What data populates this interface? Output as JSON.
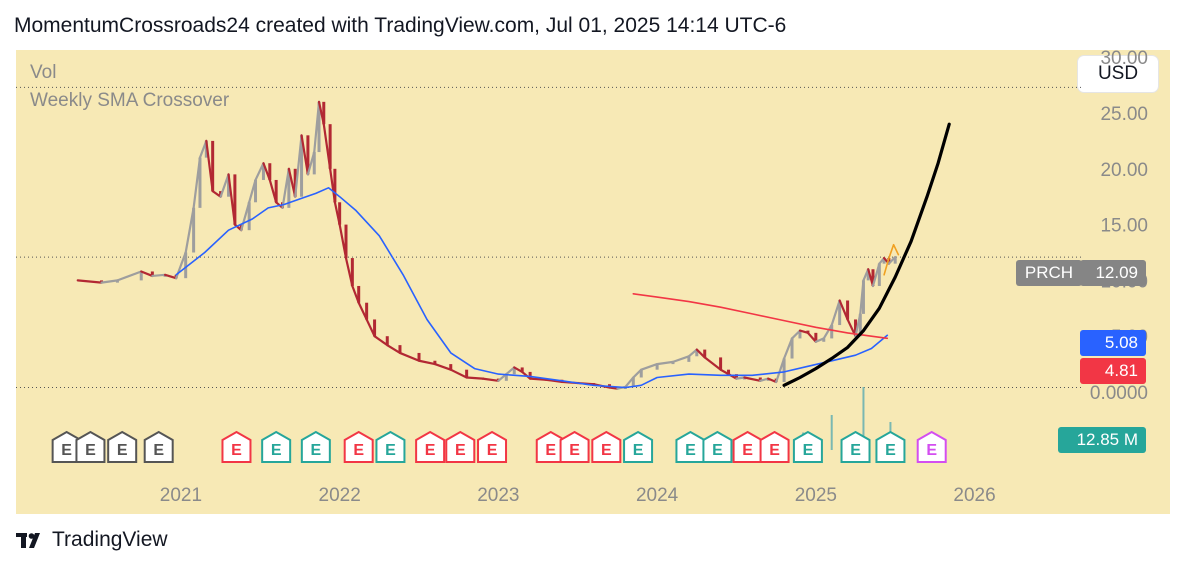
{
  "header": {
    "attribution": "MomentumCrossroads24 created with TradingView.com, Jul 01, 2025 14:14 UTC-6"
  },
  "legend": {
    "vol": "Vol",
    "indicator": "Weekly SMA Crossover"
  },
  "currency_button": "USD",
  "price_badges": {
    "symbol": "PRCH",
    "last_price": "12.09",
    "sma_fast": "5.08",
    "sma_slow": "4.81",
    "volume": "12.85 M"
  },
  "colors": {
    "background": "#f7e9b5",
    "up": "#9e9e9e",
    "down": "#b22833",
    "sma_fast": "#2962ff",
    "sma_slow": "#f23645",
    "volume_badge": "#26a69a",
    "earnings_red": "#f23645",
    "earnings_green": "#26a69a",
    "earnings_dark": "#555555",
    "earnings_future": "#d34ef0"
  },
  "footer": {
    "brand": "TradingView",
    "logo_icon": "tradingview-logo-icon"
  },
  "chart_data": {
    "type": "line",
    "symbol": "PRCH",
    "x_range": [
      2020.15,
      2026.45
    ],
    "ylim": [
      -2.5,
      31
    ],
    "x_ticks": [
      "2021",
      "2022",
      "2023",
      "2024",
      "2025",
      "2026"
    ],
    "x_tick_values": [
      2021,
      2022,
      2023,
      2024,
      2025,
      2026
    ],
    "y_ticks": [
      "0.0000",
      "5.00",
      "10.00",
      "15.00",
      "20.00",
      "25.00",
      "30.00"
    ],
    "y_tick_values": [
      0,
      5,
      10,
      15,
      20,
      25,
      30
    ],
    "dotted_levels": [
      27.3,
      12.09,
      0.4
    ],
    "price": {
      "x": [
        2020.35,
        2020.5,
        2020.6,
        2020.75,
        2020.82,
        2020.9,
        2020.97,
        2021.03,
        2021.08,
        2021.12,
        2021.16,
        2021.2,
        2021.25,
        2021.3,
        2021.34,
        2021.38,
        2021.43,
        2021.47,
        2021.52,
        2021.56,
        2021.6,
        2021.64,
        2021.68,
        2021.72,
        2021.76,
        2021.8,
        2021.84,
        2021.87,
        2021.9,
        2021.94,
        2021.97,
        2022.0,
        2022.04,
        2022.08,
        2022.12,
        2022.17,
        2022.22,
        2022.3,
        2022.38,
        2022.5,
        2022.6,
        2022.7,
        2022.8,
        2022.9,
        2023.0,
        2023.05,
        2023.1,
        2023.15,
        2023.2,
        2023.3,
        2023.4,
        2023.5,
        2023.6,
        2023.7,
        2023.75,
        2023.8,
        2023.85,
        2023.9,
        2024.0,
        2024.1,
        2024.2,
        2024.25,
        2024.3,
        2024.4,
        2024.45,
        2024.5,
        2024.55,
        2024.65,
        2024.7,
        2024.75,
        2024.8,
        2024.85,
        2024.9,
        2024.95,
        2025.0,
        2025.05,
        2025.1,
        2025.15,
        2025.2,
        2025.25,
        2025.28,
        2025.3,
        2025.33,
        2025.36,
        2025.4,
        2025.43,
        2025.46,
        2025.5
      ],
      "y": [
        10.0,
        9.8,
        10.0,
        10.8,
        10.4,
        10.5,
        10.2,
        12.5,
        16.5,
        21.0,
        22.5,
        18.0,
        17.5,
        19.5,
        15.0,
        14.5,
        17.0,
        19.0,
        20.5,
        19.0,
        17.0,
        16.5,
        20.0,
        17.5,
        23.0,
        19.5,
        21.5,
        26.0,
        24.0,
        20.0,
        17.0,
        15.0,
        12.0,
        9.5,
        8.0,
        6.5,
        5.0,
        4.2,
        3.5,
        2.8,
        2.5,
        2.0,
        1.3,
        1.2,
        1.0,
        1.6,
        2.2,
        1.8,
        1.2,
        1.1,
        0.9,
        0.8,
        0.7,
        0.4,
        0.3,
        0.45,
        1.3,
        2.0,
        2.5,
        2.7,
        3.2,
        3.8,
        3.1,
        2.0,
        1.6,
        1.2,
        1.3,
        1.0,
        1.2,
        0.9,
        3.0,
        4.8,
        5.5,
        5.3,
        4.5,
        4.8,
        6.0,
        8.2,
        6.5,
        5.0,
        7.0,
        10.0,
        11.0,
        9.5,
        11.5,
        12.0,
        11.5,
        12.09
      ]
    },
    "series": [
      {
        "name": "",
        "color": "#2962ff",
        "x": [
          2020.97,
          2021.15,
          2021.3,
          2021.45,
          2021.55,
          2021.65,
          2021.75,
          2021.85,
          2021.93,
          2022.0,
          2022.1,
          2022.25,
          2022.4,
          2022.55,
          2022.7,
          2022.85,
          2023.0,
          2023.2,
          2023.4,
          2023.6,
          2023.8,
          2023.9,
          2024.0,
          2024.2,
          2024.4,
          2024.6,
          2024.8,
          2024.95,
          2025.1,
          2025.25,
          2025.35,
          2025.45
        ],
        "y": [
          10.5,
          12.5,
          14.5,
          15.5,
          16.5,
          16.8,
          17.3,
          17.8,
          18.3,
          17.5,
          16.3,
          14.0,
          10.5,
          6.5,
          3.5,
          2.1,
          1.6,
          1.4,
          1.0,
          0.6,
          0.4,
          0.6,
          1.3,
          1.6,
          1.5,
          1.5,
          1.8,
          2.3,
          2.8,
          3.3,
          3.9,
          5.08
        ]
      },
      {
        "name": "",
        "color": "#f23645",
        "x": [
          2023.85,
          2024.0,
          2024.2,
          2024.4,
          2024.6,
          2024.8,
          2025.0,
          2025.2,
          2025.35,
          2025.45
        ],
        "y": [
          8.8,
          8.5,
          8.1,
          7.6,
          7.0,
          6.4,
          5.8,
          5.3,
          5.0,
          4.81
        ]
      },
      {
        "name": "",
        "color": "#000000",
        "x": [
          2024.8,
          2024.9,
          2025.0,
          2025.1,
          2025.2,
          2025.3,
          2025.4,
          2025.5,
          2025.6,
          2025.7,
          2025.77,
          2025.84
        ],
        "y": [
          0.6,
          1.3,
          2.1,
          3.0,
          4.0,
          5.5,
          7.5,
          10.3,
          13.5,
          17.5,
          20.5,
          24.0
        ]
      },
      {
        "name": "",
        "color": "#f0a020",
        "x": [
          2025.43,
          2025.46,
          2025.49,
          2025.52
        ],
        "y": [
          10.5,
          12.0,
          13.2,
          12.3
        ]
      }
    ],
    "earnings": [
      {
        "x": 2020.28,
        "label": "E",
        "color": "#555555"
      },
      {
        "x": 2020.43,
        "label": "E",
        "color": "#555555"
      },
      {
        "x": 2020.63,
        "label": "E",
        "color": "#555555"
      },
      {
        "x": 2020.86,
        "label": "E",
        "color": "#555555"
      },
      {
        "x": 2021.35,
        "label": "E",
        "color": "#f23645"
      },
      {
        "x": 2021.6,
        "label": "E",
        "color": "#26a69a"
      },
      {
        "x": 2021.85,
        "label": "E",
        "color": "#26a69a"
      },
      {
        "x": 2022.12,
        "label": "E",
        "color": "#f23645"
      },
      {
        "x": 2022.32,
        "label": "E",
        "color": "#26a69a"
      },
      {
        "x": 2022.57,
        "label": "E",
        "color": "#f23645"
      },
      {
        "x": 2022.76,
        "label": "E",
        "color": "#f23645"
      },
      {
        "x": 2022.96,
        "label": "E",
        "color": "#f23645"
      },
      {
        "x": 2023.33,
        "label": "E",
        "color": "#f23645"
      },
      {
        "x": 2023.48,
        "label": "E",
        "color": "#f23645"
      },
      {
        "x": 2023.68,
        "label": "E",
        "color": "#f23645"
      },
      {
        "x": 2023.88,
        "label": "E",
        "color": "#26a69a"
      },
      {
        "x": 2024.21,
        "label": "E",
        "color": "#26a69a"
      },
      {
        "x": 2024.38,
        "label": "E",
        "color": "#26a69a"
      },
      {
        "x": 2024.57,
        "label": "E",
        "color": "#f23645"
      },
      {
        "x": 2024.74,
        "label": "E",
        "color": "#f23645"
      },
      {
        "x": 2024.95,
        "label": "E",
        "color": "#26a69a"
      },
      {
        "x": 2025.25,
        "label": "E",
        "color": "#26a69a"
      },
      {
        "x": 2025.47,
        "label": "E",
        "color": "#26a69a"
      },
      {
        "x": 2025.73,
        "label": "E",
        "color": "#d34ef0"
      }
    ],
    "volume_spikes": [
      {
        "x": 2024.92,
        "value": 0.25
      },
      {
        "x": 2025.1,
        "value": 0.5
      },
      {
        "x": 2025.3,
        "value": 0.9
      },
      {
        "x": 2025.47,
        "value": 0.4
      }
    ]
  }
}
